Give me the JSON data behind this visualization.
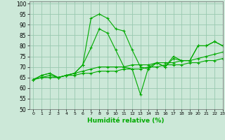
{
  "xlabel": "Humidité relative (%)",
  "bg_color": "#cce8d8",
  "grid_color": "#99c8b0",
  "line_color": "#00aa00",
  "xlim": [
    -0.5,
    23
  ],
  "ylim": [
    50,
    101
  ],
  "xticks": [
    0,
    1,
    2,
    3,
    4,
    5,
    6,
    7,
    8,
    9,
    10,
    11,
    12,
    13,
    14,
    15,
    16,
    17,
    18,
    19,
    20,
    21,
    22,
    23
  ],
  "yticks": [
    50,
    55,
    60,
    65,
    70,
    75,
    80,
    85,
    90,
    95,
    100
  ],
  "series": [
    [
      64,
      66,
      67,
      65,
      66,
      67,
      71,
      93,
      95,
      93,
      88,
      87,
      78,
      70,
      69,
      72,
      70,
      75,
      73,
      73,
      80,
      80,
      82,
      80
    ],
    [
      64,
      66,
      67,
      65,
      66,
      67,
      71,
      79,
      88,
      86,
      78,
      70,
      69,
      57,
      70,
      72,
      70,
      74,
      73,
      73,
      80,
      80,
      82,
      80
    ],
    [
      64,
      65,
      66,
      65,
      66,
      67,
      68,
      69,
      70,
      70,
      70,
      70,
      71,
      71,
      71,
      72,
      72,
      72,
      73,
      73,
      74,
      75,
      76,
      77
    ],
    [
      64,
      65,
      65,
      65,
      66,
      66,
      67,
      67,
      68,
      68,
      68,
      69,
      69,
      69,
      70,
      70,
      71,
      71,
      71,
      72,
      72,
      73,
      73,
      74
    ]
  ]
}
